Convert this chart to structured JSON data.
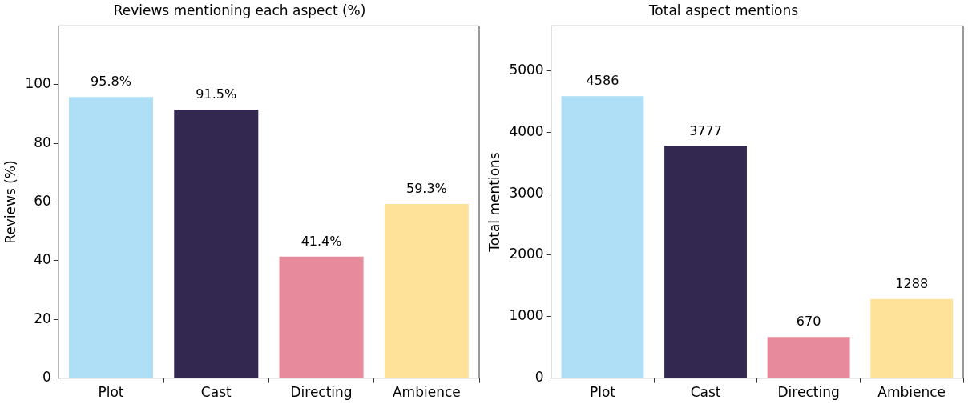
{
  "chart_data": [
    {
      "type": "bar",
      "title": "Reviews mentioning each aspect (%)",
      "ylabel": "Reviews (%)",
      "categories": [
        "Plot",
        "Cast",
        "Directing",
        "Ambience"
      ],
      "values": [
        95.8,
        91.5,
        41.4,
        59.3
      ],
      "colors": [
        "#aedff7",
        "#33284f",
        "#e68a9c",
        "#ffe299"
      ],
      "value_labels": [
        "95.8%",
        "91.5%",
        "41.4%",
        "59.3%"
      ],
      "ylim": [
        0,
        120
      ],
      "yticks": [
        0,
        20,
        40,
        60,
        80,
        100
      ],
      "grid": false,
      "legend": false
    },
    {
      "type": "bar",
      "title": "Total aspect mentions",
      "ylabel": "Total mentions",
      "categories": [
        "Plot",
        "Cast",
        "Directing",
        "Ambience"
      ],
      "values": [
        4586,
        3777,
        670,
        1288
      ],
      "colors": [
        "#aedff7",
        "#33284f",
        "#e68a9c",
        "#ffe299"
      ],
      "data_labels": true,
      "ylim": [
        0,
        5730
      ],
      "yticks": [
        0,
        1000,
        2000,
        3000,
        4000,
        5000
      ],
      "grid": false,
      "legend": false
    }
  ]
}
